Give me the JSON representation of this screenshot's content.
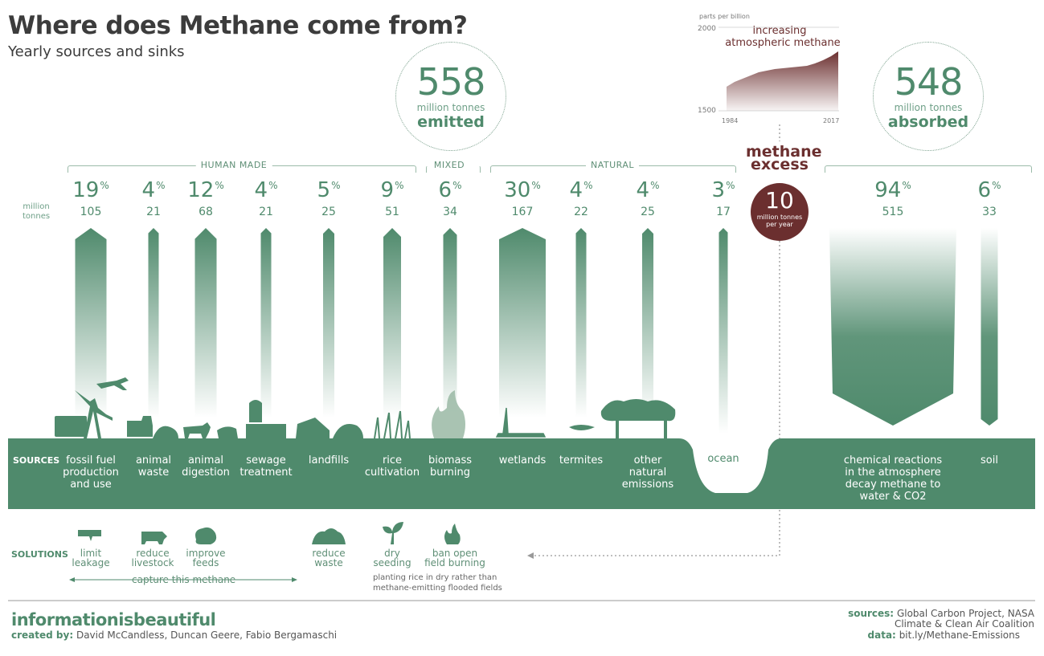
{
  "header": {
    "title": "Where does Methane come from?",
    "subtitle": "Yearly sources and sinks"
  },
  "emitted": {
    "value": "558",
    "unit": "million tonnes",
    "label": "emitted"
  },
  "absorbed": {
    "value": "548",
    "unit": "million tonnes",
    "label": "absorbed"
  },
  "inset": {
    "ylabel": "parts per billion",
    "y_top": "2000",
    "y_bottom": "1500",
    "x_start": "1984",
    "x_end": "2017",
    "caption_line1": "increasing",
    "caption_line2": "atmospheric methane",
    "color": "#6b2f2f"
  },
  "excess": {
    "title_line1": "methane",
    "title_line2": "excess",
    "value": "10",
    "unit_line1": "million tonnes",
    "unit_line2": "per year"
  },
  "categories": {
    "human": "HUMAN MADE",
    "mixed": "MIXED",
    "natural": "NATURAL"
  },
  "row_label": {
    "line1": "million",
    "line2": "tonnes"
  },
  "sides": {
    "sources": "SOURCES",
    "solutions": "SOLUTIONS"
  },
  "capture_label": "capture this methane",
  "rice_note": {
    "line1": "planting rice in dry rather than",
    "line2": "methane-emitting flooded fields"
  },
  "solutions": [
    {
      "label": "limit\nleakage",
      "icon": "pipe-leak-icon"
    },
    {
      "label": "reduce\nlivestock",
      "icon": "cow-icon"
    },
    {
      "label": "improve\nfeeds",
      "icon": "feed-icon"
    },
    {
      "label": "reduce\nwaste",
      "icon": "waste-pile-icon"
    },
    {
      "label": "dry\nseeding",
      "icon": "seedling-icon"
    },
    {
      "label": "ban open\nfield burning",
      "icon": "flame-icon"
    }
  ],
  "footer": {
    "brand": "informationisbeautiful",
    "created_by_label": "created by:",
    "created_by": "David McCandless, Duncan Geere, Fabio Bergamaschi",
    "sources_label": "sources:",
    "sources_line1": "Global Carbon Project, NASA",
    "sources_line2": "Climate & Clean Air Coalition",
    "data_label": "data:",
    "data_value": "bit.ly/Methane-Emissions"
  },
  "colors": {
    "green": "#4f8a6c",
    "maroon": "#6b2f2f"
  },
  "chart_data": {
    "type": "bar",
    "title": "Where does Methane come from?",
    "ylabel": "million tonnes",
    "sources": [
      {
        "name": "fossil fuel\nproduction\nand use",
        "pct": 19,
        "value": 105,
        "group": "human"
      },
      {
        "name": "animal\nwaste",
        "pct": 4,
        "value": 21,
        "group": "human"
      },
      {
        "name": "animal\ndigestion",
        "pct": 12,
        "value": 68,
        "group": "human"
      },
      {
        "name": "sewage\ntreatment",
        "pct": 4,
        "value": 21,
        "group": "human"
      },
      {
        "name": "landfills",
        "pct": 5,
        "value": 25,
        "group": "human"
      },
      {
        "name": "rice\ncultivation",
        "pct": 9,
        "value": 51,
        "group": "human"
      },
      {
        "name": "biomass\nburning",
        "pct": 6,
        "value": 34,
        "group": "mixed"
      },
      {
        "name": "wetlands",
        "pct": 30,
        "value": 167,
        "group": "natural"
      },
      {
        "name": "termites",
        "pct": 4,
        "value": 22,
        "group": "natural"
      },
      {
        "name": "other\nnatural\nemissions",
        "pct": 4,
        "value": 25,
        "group": "natural"
      },
      {
        "name": "ocean",
        "pct": 3,
        "value": 17,
        "group": "natural"
      }
    ],
    "sinks": [
      {
        "name": "chemical reactions\nin the atmosphere\ndecay methane to\nwater & CO2",
        "pct": 94,
        "value": 515
      },
      {
        "name": "soil",
        "pct": 6,
        "value": 33
      }
    ],
    "pct_unit": "%",
    "total_emitted": 558,
    "total_absorbed": 548,
    "excess": 10
  }
}
